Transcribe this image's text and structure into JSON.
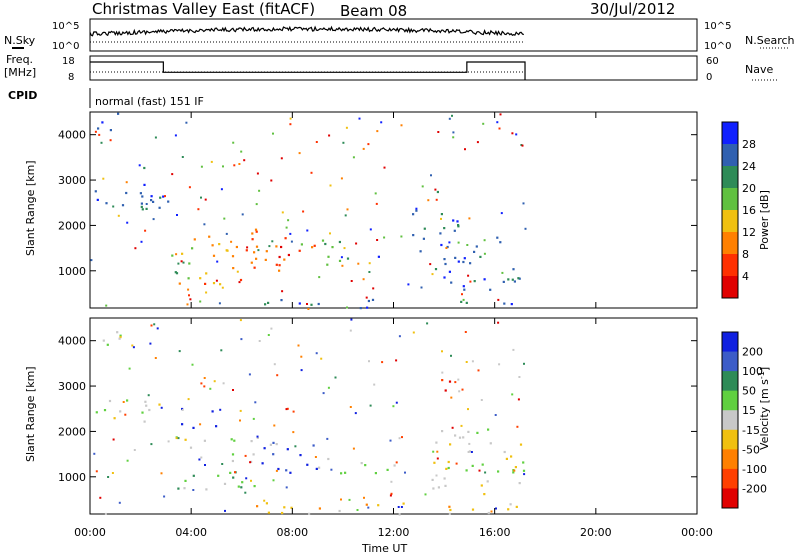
{
  "header": {
    "station": "Christmas Valley East (fitACF)",
    "beam": "Beam 08",
    "date": "30/Jul/2012"
  },
  "noise_panel": {
    "left_label": "N.Sky",
    "right_label": "N.Search",
    "left_ticks": [
      "10^5",
      "10^0"
    ],
    "right_ticks": [
      "10^5",
      "10^0"
    ]
  },
  "freq_panel": {
    "left_label_line1": "Freq.",
    "left_label_line2": "[MHz]",
    "right_label": "Nave",
    "left_ticks": [
      "18",
      "8"
    ],
    "right_ticks": [
      "60",
      "0"
    ],
    "freq_steps": [
      [
        0.0,
        15.5
      ],
      [
        2.9,
        11.2
      ],
      [
        14.9,
        15.5
      ],
      [
        17.2,
        15.5
      ]
    ]
  },
  "cpid": {
    "label": "CPID",
    "mode": "normal (fast) 151 IF"
  },
  "chart_data": [
    {
      "type": "heatmap",
      "name": "power",
      "ylabel": "Slant Range [km]",
      "ylim": [
        180,
        4500
      ],
      "yticks": [
        "1000",
        "2000",
        "3000",
        "4000"
      ],
      "xlim_hours": [
        0,
        24
      ],
      "xticks": [
        "00:00",
        "04:00",
        "08:00",
        "12:00",
        "16:00",
        "20:00",
        "00:00"
      ],
      "xlabel": "Time UT",
      "colorbar_label": "Power [dB]",
      "colorbar_ticks": [
        "4",
        "8",
        "12",
        "16",
        "20",
        "24",
        "28"
      ],
      "colorbar_colors": [
        "#1020ff",
        "#3060b0",
        "#2e8b57",
        "#60c040",
        "#f0c010",
        "#ff8000",
        "#ff3000",
        "#e00000"
      ],
      "regions": [
        {
          "t": [
            0.1,
            1.2
          ],
          "r": [
            3900,
            4500
          ],
          "c": 1
        },
        {
          "t": [
            0.1,
            1.5
          ],
          "r": [
            2300,
            2800
          ],
          "c": 1
        },
        {
          "t": [
            1.5,
            3.5
          ],
          "r": [
            2400,
            3300
          ],
          "c": 1
        },
        {
          "t": [
            1.8,
            2.8
          ],
          "r": [
            2200,
            2700
          ],
          "c": 2
        },
        {
          "t": [
            3.0,
            5.8
          ],
          "r": [
            1200,
            1800
          ],
          "c": 4
        },
        {
          "t": [
            3.2,
            5.0
          ],
          "r": [
            800,
            1200
          ],
          "c": 3
        },
        {
          "t": [
            3.5,
            6.0
          ],
          "r": [
            700,
            1100
          ],
          "c": 5
        },
        {
          "t": [
            5.5,
            7.5
          ],
          "r": [
            900,
            1500
          ],
          "c": 6
        },
        {
          "t": [
            6.0,
            7.8
          ],
          "r": [
            1200,
            2000
          ],
          "c": 5
        },
        {
          "t": [
            7.0,
            9.0
          ],
          "r": [
            1100,
            1600
          ],
          "c": 6
        },
        {
          "t": [
            8.0,
            10.0
          ],
          "r": [
            1100,
            1700
          ],
          "c": 3
        },
        {
          "t": [
            10.0,
            11.5
          ],
          "r": [
            1150,
            1350
          ],
          "c": 1
        },
        {
          "t": [
            12.5,
            14.5
          ],
          "r": [
            1300,
            2000
          ],
          "c": 1
        },
        {
          "t": [
            13.5,
            17.0
          ],
          "r": [
            600,
            1800
          ],
          "c": 1
        },
        {
          "t": [
            13.7,
            14.1
          ],
          "r": [
            2600,
            3100
          ],
          "c": 3
        },
        {
          "t": [
            12.3,
            15.0
          ],
          "r": [
            2000,
            2400
          ],
          "c": 1
        },
        {
          "t": [
            6.5,
            17.2
          ],
          "r": [
            200,
            400
          ],
          "c": 1
        }
      ]
    },
    {
      "type": "heatmap",
      "name": "velocity",
      "ylabel": "Slant Range [km]",
      "ylim": [
        180,
        4500
      ],
      "yticks": [
        "1000",
        "2000",
        "3000",
        "4000"
      ],
      "xlim_hours": [
        0,
        24
      ],
      "xticks": [
        "00:00",
        "04:00",
        "08:00",
        "12:00",
        "16:00",
        "20:00",
        "00:00"
      ],
      "xlabel": "Time UT",
      "colorbar_label": "Velocity [m s^-1]",
      "colorbar_ticks": [
        "200",
        "100",
        "50",
        "15",
        "-15",
        "-50",
        "-100",
        "-200"
      ],
      "colorbar_colors": [
        "#1020e0",
        "#3c5cc8",
        "#2e8b57",
        "#60d040",
        "#c8c8c8",
        "#f0c010",
        "#ff8000",
        "#ff4000",
        "#e00000"
      ],
      "regions": [
        {
          "t": [
            0.1,
            1.5
          ],
          "r": [
            3900,
            4500
          ],
          "c": 4
        },
        {
          "t": [
            0.1,
            3.0
          ],
          "r": [
            2200,
            2800
          ],
          "c": 4
        },
        {
          "t": [
            3.0,
            4.5
          ],
          "r": [
            1500,
            1900
          ],
          "c": 4
        },
        {
          "t": [
            3.5,
            5.0
          ],
          "r": [
            2100,
            2600
          ],
          "c": 0
        },
        {
          "t": [
            5.5,
            8.0
          ],
          "r": [
            1300,
            1900
          ],
          "c": 4
        },
        {
          "t": [
            3.2,
            6.8
          ],
          "r": [
            600,
            1200
          ],
          "c": 3
        },
        {
          "t": [
            6.5,
            9.0
          ],
          "r": [
            1100,
            1800
          ],
          "c": 0
        },
        {
          "t": [
            8.5,
            12.0
          ],
          "r": [
            1100,
            1500
          ],
          "c": 3
        },
        {
          "t": [
            13.7,
            14.2
          ],
          "r": [
            2600,
            3400
          ],
          "c": 8
        },
        {
          "t": [
            13.5,
            17.2
          ],
          "r": [
            600,
            1800
          ],
          "c": 4
        },
        {
          "t": [
            13.5,
            17.0
          ],
          "r": [
            1800,
            2100
          ],
          "c": 4
        },
        {
          "t": [
            6.0,
            17.2
          ],
          "r": [
            200,
            450
          ],
          "c": 5
        }
      ]
    }
  ]
}
